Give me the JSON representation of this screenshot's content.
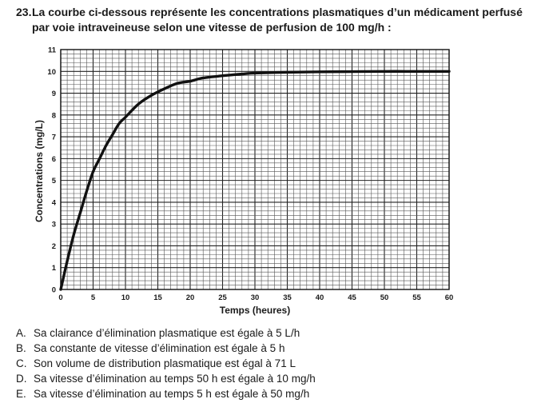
{
  "question": {
    "number": "23.",
    "line1": "La courbe ci-dessous représente les concentrations plasmatiques d’un médicament perfusé",
    "line2": "par voie intraveineuse selon une vitesse de perfusion de 100 mg/h :"
  },
  "chart_data": {
    "type": "line",
    "title": "",
    "xlabel": "Temps (heures)",
    "ylabel": "Concentrations (mg/L)",
    "xlim": [
      0,
      60
    ],
    "ylim": [
      0,
      11
    ],
    "x_ticks": [
      0,
      5,
      10,
      15,
      20,
      25,
      30,
      35,
      40,
      45,
      50,
      55,
      60
    ],
    "y_ticks": [
      0,
      1,
      2,
      3,
      4,
      5,
      6,
      7,
      8,
      9,
      10,
      11
    ],
    "grid": true,
    "legend": "none",
    "line_color": "#111111",
    "series": [
      {
        "x": [
          0,
          1,
          2,
          3,
          4,
          5,
          6,
          7,
          8,
          9,
          10,
          12,
          14,
          16,
          18,
          20,
          22,
          25,
          28,
          30,
          35,
          40,
          45,
          50,
          55,
          60
        ],
        "values": [
          0,
          1.3,
          2.5,
          3.5,
          4.5,
          5.4,
          6.0,
          6.6,
          7.1,
          7.6,
          7.9,
          8.5,
          8.9,
          9.2,
          9.45,
          9.55,
          9.7,
          9.8,
          9.88,
          9.92,
          9.96,
          9.98,
          9.99,
          10.0,
          10.0,
          10.0
        ]
      }
    ]
  },
  "options": [
    {
      "letter": "A.",
      "text": "Sa clairance d’élimination plasmatique est égale à 5 L/h"
    },
    {
      "letter": "B.",
      "text": "Sa constante de vitesse d’élimination est égale à 5 h"
    },
    {
      "letter": "C.",
      "text": "Son volume de distribution plasmatique est égal à 71 L"
    },
    {
      "letter": "D.",
      "text": "Sa vitesse d’élimination au temps 50 h est égale à 10 mg/h"
    },
    {
      "letter": "E.",
      "text": "Sa vitesse d’élimination au temps 5 h est égale à 50 mg/h"
    }
  ]
}
